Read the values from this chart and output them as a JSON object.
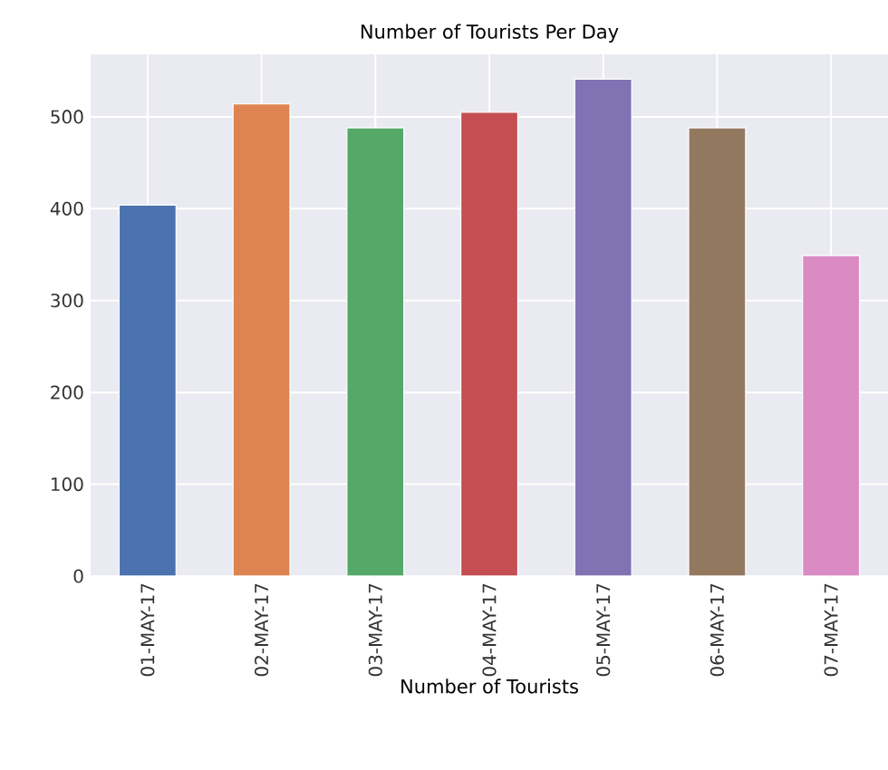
{
  "chart_data": {
    "type": "bar",
    "title": "Number of Tourists Per Day",
    "xlabel": "Number of Tourists",
    "categories": [
      "01-MAY-17",
      "02-MAY-17",
      "03-MAY-17",
      "04-MAY-17",
      "05-MAY-17",
      "06-MAY-17",
      "07-MAY-17"
    ],
    "values": [
      404,
      514,
      488,
      505,
      541,
      488,
      349
    ],
    "colors": [
      "#4c72b0",
      "#dd8452",
      "#55a868",
      "#c44e52",
      "#8172b3",
      "#937860",
      "#da8bc3"
    ],
    "ylim": [
      0,
      568
    ],
    "yticks": [
      0,
      100,
      200,
      300,
      400,
      500
    ],
    "grid": true
  }
}
